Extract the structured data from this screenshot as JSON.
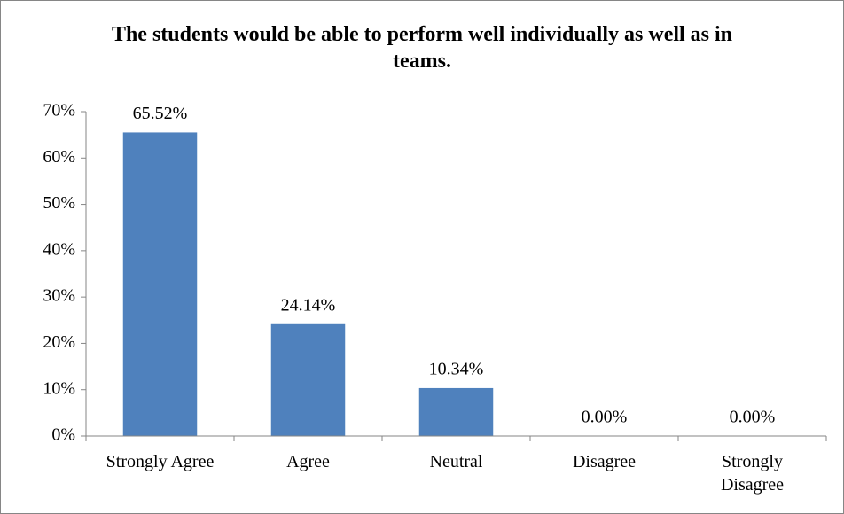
{
  "chart_data": {
    "type": "bar",
    "title": "The students would be able to perform well individually as well as in teams.",
    "categories": [
      "Strongly Agree",
      "Agree",
      "Neutral",
      "Disagree",
      "Strongly Disagree"
    ],
    "values": [
      65.52,
      24.14,
      10.34,
      0,
      0
    ],
    "value_labels": [
      "65.52%",
      "24.14%",
      "10.34%",
      "0.00%",
      "0.00%"
    ],
    "color": "#4f81bd",
    "ylim": [
      0,
      70
    ],
    "yticks": [
      {
        "value": 0,
        "label": "0%"
      },
      {
        "value": 10,
        "label": "10%"
      },
      {
        "value": 20,
        "label": "20%"
      },
      {
        "value": 30,
        "label": "30%"
      },
      {
        "value": 40,
        "label": "40%"
      },
      {
        "value": 50,
        "label": "50%"
      },
      {
        "value": 60,
        "label": "60%"
      },
      {
        "value": 70,
        "label": "70%"
      }
    ],
    "grid": false
  }
}
